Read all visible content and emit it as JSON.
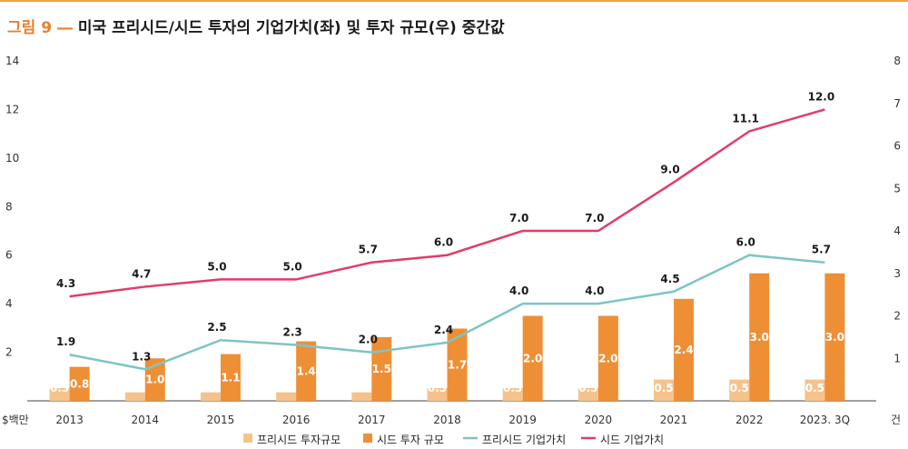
{
  "title": {
    "label": "그림 9 ―",
    "text": "미국 프리시드/시드 투자의 기업가치(좌) 및 투자 규모(우) 중간값"
  },
  "colors": {
    "accent": "#e8802f",
    "preseed_bar": "#f6c28b",
    "seed_bar": "#ee8f36",
    "preseed_line": "#7fc4c4",
    "seed_line": "#e23c6a",
    "value_label_light": "#ffffff",
    "value_label_dark": "#1a1a1a"
  },
  "chart_data": {
    "type": "bar",
    "categories": [
      "2013",
      "2014",
      "2015",
      "2016",
      "2017",
      "2018",
      "2019",
      "2020",
      "2021",
      "2022",
      "2023. 3Q"
    ],
    "left_axis": {
      "unit_label": "$백만",
      "ticks": [
        "2",
        "4",
        "6",
        "8",
        "10",
        "12",
        "14"
      ],
      "ylim": [
        0,
        14
      ]
    },
    "right_axis": {
      "unit_label": "건",
      "ticks": [
        "1",
        "2",
        "3",
        "4",
        "5",
        "6",
        "7",
        "8"
      ],
      "ylim": [
        0,
        8
      ]
    },
    "bar_series": [
      {
        "name": "프리시드 투자규모",
        "axis": "right",
        "values": [
          0.3,
          0.2,
          0.2,
          0.2,
          0.2,
          0.3,
          0.3,
          0.3,
          0.5,
          0.5,
          0.5
        ]
      },
      {
        "name": "시드 투자 규모",
        "axis": "right",
        "values": [
          0.8,
          1.0,
          1.1,
          1.4,
          1.5,
          1.7,
          2.0,
          2.0,
          2.4,
          3.0,
          3.0
        ]
      }
    ],
    "line_series": [
      {
        "name": "프리시드 기업가치",
        "axis": "left",
        "values": [
          1.9,
          1.3,
          2.5,
          2.3,
          2.0,
          2.4,
          4.0,
          4.0,
          4.5,
          6.0,
          5.7
        ]
      },
      {
        "name": "시드 기업가치",
        "axis": "left",
        "values": [
          4.3,
          4.7,
          5.0,
          5.0,
          5.7,
          6.0,
          7.0,
          7.0,
          9.0,
          11.1,
          12.0
        ]
      }
    ],
    "legend_position": "bottom"
  }
}
